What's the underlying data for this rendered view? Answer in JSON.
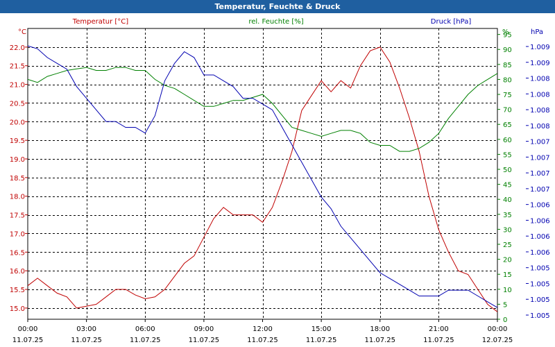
{
  "title": "Temperatur, Feuchte & Druck",
  "chart_data": {
    "type": "line",
    "title": "Temperatur, Feuchte & Druck",
    "x": [
      "00:00",
      "00:30",
      "01:00",
      "01:30",
      "02:00",
      "02:30",
      "03:00",
      "03:30",
      "04:00",
      "04:30",
      "05:00",
      "05:30",
      "06:00",
      "06:30",
      "07:00",
      "07:30",
      "08:00",
      "08:30",
      "09:00",
      "09:30",
      "10:00",
      "10:30",
      "11:00",
      "11:30",
      "12:00",
      "12:30",
      "13:00",
      "13:30",
      "14:00",
      "14:30",
      "15:00",
      "15:30",
      "16:00",
      "16:30",
      "17:00",
      "17:30",
      "18:00",
      "18:30",
      "19:00",
      "19:30",
      "20:00",
      "20:30",
      "21:00",
      "21:30",
      "22:00",
      "22:30",
      "23:00",
      "23:30",
      "24:00"
    ],
    "x_ticks": [
      {
        "time": "00:00",
        "date": "11.07.25"
      },
      {
        "time": "03:00",
        "date": "11.07.25"
      },
      {
        "time": "06:00",
        "date": "11.07.25"
      },
      {
        "time": "09:00",
        "date": "11.07.25"
      },
      {
        "time": "12:00",
        "date": "11.07.25"
      },
      {
        "time": "15:00",
        "date": "11.07.25"
      },
      {
        "time": "18:00",
        "date": "11.07.25"
      },
      {
        "time": "21:00",
        "date": "11.07.25"
      },
      {
        "time": "00:00",
        "date": "12.07.25"
      }
    ],
    "series": [
      {
        "name": "Temperatur [°C]",
        "unit": "°C",
        "color": "#c00000",
        "axis": "left",
        "values": [
          15.6,
          15.8,
          15.6,
          15.4,
          15.3,
          15.0,
          15.05,
          15.1,
          15.3,
          15.5,
          15.5,
          15.35,
          15.25,
          15.3,
          15.5,
          15.85,
          16.2,
          16.4,
          16.9,
          17.4,
          17.7,
          17.5,
          17.5,
          17.5,
          17.3,
          17.7,
          18.4,
          19.2,
          20.3,
          20.7,
          21.1,
          20.8,
          21.1,
          20.9,
          21.5,
          21.9,
          22.0,
          21.6,
          20.9,
          20.1,
          19.2,
          18.0,
          17.1,
          16.5,
          16.0,
          15.9,
          15.5,
          15.1,
          14.9
        ]
      },
      {
        "name": "rel. Feuchte [%]",
        "unit": "%",
        "color": "#008000",
        "axis": "right",
        "values": [
          80,
          79,
          81,
          82,
          83,
          83.5,
          84,
          83,
          83,
          84,
          84,
          83,
          83,
          80,
          78,
          77,
          75,
          73,
          71,
          71,
          72,
          73,
          73,
          74,
          75,
          72,
          68,
          64,
          63,
          62,
          61,
          62,
          63,
          63,
          62,
          59,
          58,
          58,
          56,
          56,
          57,
          59,
          62,
          67,
          71,
          75,
          78,
          80,
          82
        ]
      },
      {
        "name": "Druck [hPa]",
        "unit": "hPa",
        "color": "#0000b0",
        "axis": "right2",
        "values": [
          1.0091,
          1.00905,
          1.0089,
          1.0088,
          1.0087,
          1.0084,
          1.0082,
          1.008,
          1.0078,
          1.0078,
          1.0077,
          1.0077,
          1.0076,
          1.0079,
          1.0085,
          1.0088,
          1.009,
          1.0089,
          1.0086,
          1.0086,
          1.0085,
          1.0084,
          1.0082,
          1.0082,
          1.0081,
          1.008,
          1.0077,
          1.0074,
          1.0071,
          1.0068,
          1.0065,
          1.0063,
          1.006,
          1.0058,
          1.0056,
          1.0054,
          1.0052,
          1.0051,
          1.005,
          1.0049,
          1.0048,
          1.0048,
          1.0048,
          1.0049,
          1.0049,
          1.0049,
          1.0048,
          1.0047,
          1.0046
        ]
      }
    ],
    "axes": {
      "left": {
        "label": "°C",
        "series_label": "Temperatur [°C]",
        "min": 14.7,
        "max": 22.5,
        "ticks": [
          "15.0",
          "15.5",
          "16.0",
          "16.5",
          "17.0",
          "17.5",
          "18.0",
          "18.5",
          "19.0",
          "19.5",
          "20.0",
          "20.5",
          "21.0",
          "21.5",
          "22.0"
        ],
        "tick_values": [
          15.0,
          15.5,
          16.0,
          16.5,
          17.0,
          17.5,
          18.0,
          18.5,
          19.0,
          19.5,
          20.0,
          20.5,
          21.0,
          21.5,
          22.0
        ]
      },
      "right": {
        "label": "%",
        "series_label": "rel. Feuchte [%]",
        "min": 0,
        "max": 97,
        "ticks": [
          "0",
          "5",
          "10",
          "15",
          "20",
          "25",
          "30",
          "35",
          "40",
          "45",
          "50",
          "55",
          "60",
          "65",
          "70",
          "75",
          "80",
          "85",
          "90",
          "95"
        ],
        "tick_values": [
          0,
          5,
          10,
          15,
          20,
          25,
          30,
          35,
          40,
          45,
          50,
          55,
          60,
          65,
          70,
          75,
          80,
          85,
          90,
          95
        ]
      },
      "right2": {
        "label": "hPa",
        "series_label": "Druck [hPa]",
        "min": 1.0044,
        "max": 1.0094,
        "ticks": [
          "1.005",
          "1.005",
          "1.005",
          "1.005",
          "1.006",
          "1.006",
          "1.006",
          "1.006",
          "1.007",
          "1.007",
          "1.007",
          "1.007",
          "1.008",
          "1.008",
          "1.008",
          "1.008",
          "1.009",
          "1.009"
        ]
      }
    },
    "grid": true
  }
}
